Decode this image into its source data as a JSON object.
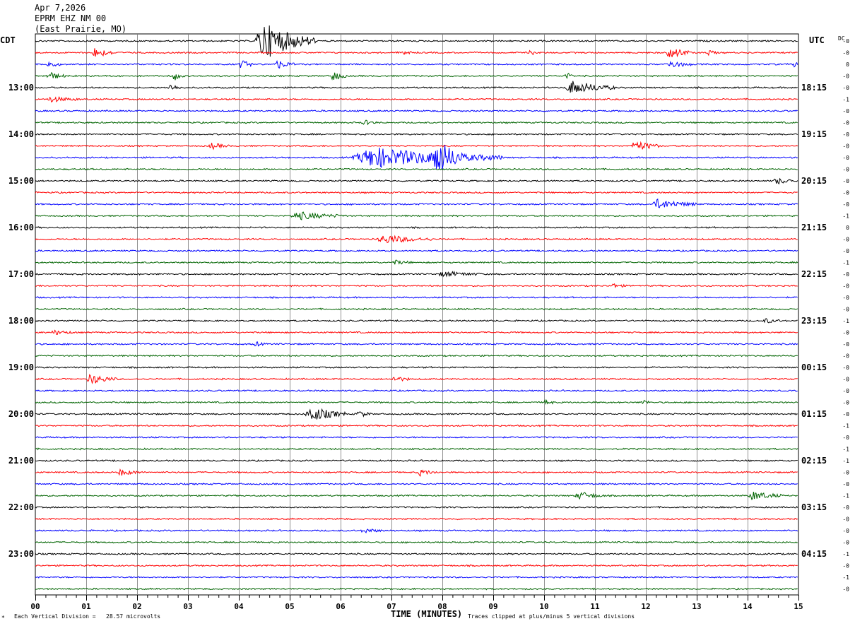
{
  "header": {
    "date": "Apr 7,2026",
    "station": "EPRM EHZ NM 00",
    "location": "(East Prairie, MO)"
  },
  "left_timezone": "CDT",
  "right_timezone": "UTC",
  "dc_label": "DC",
  "footer": {
    "scale_note": "Each Vertical Division =   28.57 microvolts",
    "clip_note": "Traces clipped at plus/minus 5 vertical divisions",
    "corner_mark": "*"
  },
  "chart_data": {
    "type": "line",
    "xlabel": "TIME (MINUTES)",
    "x_range": [
      0,
      15
    ],
    "x_ticks": [
      "00",
      "01",
      "02",
      "03",
      "04",
      "05",
      "06",
      "07",
      "08",
      "09",
      "10",
      "11",
      "12",
      "13",
      "14",
      "15"
    ],
    "left_hour_labels": [
      "13:00",
      "14:00",
      "15:00",
      "16:00",
      "17:00",
      "18:00",
      "19:00",
      "20:00",
      "21:00",
      "22:00",
      "23:00"
    ],
    "right_hour_labels": [
      "18:15",
      "19:15",
      "20:15",
      "21:15",
      "22:15",
      "23:15",
      "00:15",
      "01:15",
      "02:15",
      "03:15",
      "04:15"
    ],
    "trace_colors": [
      "#000000",
      "#ff0000",
      "#0000ff",
      "#006400"
    ],
    "dc_offsets": [
      "-0",
      "-0",
      "0",
      "-0",
      "-0",
      "-1",
      "-0",
      "-0",
      "-0",
      "-0",
      "-0",
      "-0",
      "-0",
      "-0",
      "-0",
      "-1",
      "0",
      "-0",
      "-0",
      "-1",
      "-0",
      "-0",
      "-0",
      "-0",
      "-1",
      "-0",
      "-0",
      "-0",
      "-0",
      "-0",
      "-0",
      "-0",
      "-0",
      "-1",
      "-0",
      "-1",
      "-1",
      "-0",
      "-0",
      "-1",
      "-0",
      "-0",
      "-0",
      "-0",
      "-1",
      "-0",
      "-1",
      "-0"
    ],
    "grid": true,
    "traces_per_hour": 4,
    "minutes_per_trace": 15,
    "events": [
      {
        "trace": 0,
        "start": 4.3,
        "end": 5.5,
        "amp": 4.5
      },
      {
        "trace": 1,
        "start": 1.1,
        "end": 1.6,
        "amp": 1.2
      },
      {
        "trace": 1,
        "start": 7.2,
        "end": 7.4,
        "amp": 0.8
      },
      {
        "trace": 1,
        "start": 9.7,
        "end": 9.9,
        "amp": 0.6
      },
      {
        "trace": 1,
        "start": 12.4,
        "end": 12.9,
        "amp": 1.5
      },
      {
        "trace": 1,
        "start": 13.2,
        "end": 13.4,
        "amp": 0.8
      },
      {
        "trace": 2,
        "start": 0.2,
        "end": 0.5,
        "amp": 0.8
      },
      {
        "trace": 2,
        "start": 4.0,
        "end": 4.3,
        "amp": 1.0
      },
      {
        "trace": 2,
        "start": 4.7,
        "end": 5.1,
        "amp": 1.0
      },
      {
        "trace": 2,
        "start": 12.4,
        "end": 12.9,
        "amp": 0.9
      },
      {
        "trace": 2,
        "start": 14.9,
        "end": 15.0,
        "amp": 0.8
      },
      {
        "trace": 3,
        "start": 0.2,
        "end": 0.6,
        "amp": 1.0
      },
      {
        "trace": 3,
        "start": 2.7,
        "end": 2.9,
        "amp": 1.2
      },
      {
        "trace": 3,
        "start": 5.8,
        "end": 6.1,
        "amp": 1.2
      },
      {
        "trace": 3,
        "start": 10.4,
        "end": 10.6,
        "amp": 0.8
      },
      {
        "trace": 4,
        "start": 2.6,
        "end": 2.9,
        "amp": 0.8
      },
      {
        "trace": 4,
        "start": 10.4,
        "end": 11.4,
        "amp": 1.6
      },
      {
        "trace": 5,
        "start": 0.2,
        "end": 0.9,
        "amp": 0.6
      },
      {
        "trace": 7,
        "start": 6.4,
        "end": 6.7,
        "amp": 0.6
      },
      {
        "trace": 9,
        "start": 3.4,
        "end": 3.8,
        "amp": 0.7
      },
      {
        "trace": 9,
        "start": 11.7,
        "end": 12.3,
        "amp": 1.2
      },
      {
        "trace": 10,
        "start": 6.2,
        "end": 9.2,
        "amp": 2.4
      },
      {
        "trace": 10,
        "start": 7.8,
        "end": 8.4,
        "amp": 3.6
      },
      {
        "trace": 12,
        "start": 14.5,
        "end": 15.0,
        "amp": 0.7
      },
      {
        "trace": 14,
        "start": 12.1,
        "end": 13.0,
        "amp": 1.1
      },
      {
        "trace": 15,
        "start": 5.0,
        "end": 6.1,
        "amp": 0.9
      },
      {
        "trace": 17,
        "start": 6.7,
        "end": 7.8,
        "amp": 1.0
      },
      {
        "trace": 19,
        "start": 7.0,
        "end": 7.4,
        "amp": 0.5
      },
      {
        "trace": 20,
        "start": 7.9,
        "end": 8.8,
        "amp": 0.6
      },
      {
        "trace": 21,
        "start": 11.3,
        "end": 11.6,
        "amp": 0.5
      },
      {
        "trace": 24,
        "start": 14.3,
        "end": 14.7,
        "amp": 0.5
      },
      {
        "trace": 25,
        "start": 0.3,
        "end": 0.8,
        "amp": 0.5
      },
      {
        "trace": 26,
        "start": 4.3,
        "end": 4.5,
        "amp": 0.6
      },
      {
        "trace": 29,
        "start": 1.0,
        "end": 1.6,
        "amp": 1.2
      },
      {
        "trace": 29,
        "start": 7.0,
        "end": 7.4,
        "amp": 0.6
      },
      {
        "trace": 31,
        "start": 10.0,
        "end": 10.2,
        "amp": 0.7
      },
      {
        "trace": 31,
        "start": 11.9,
        "end": 12.1,
        "amp": 0.7
      },
      {
        "trace": 32,
        "start": 5.3,
        "end": 6.1,
        "amp": 1.8
      },
      {
        "trace": 32,
        "start": 6.3,
        "end": 6.6,
        "amp": 0.8
      },
      {
        "trace": 37,
        "start": 1.6,
        "end": 2.1,
        "amp": 0.7
      },
      {
        "trace": 37,
        "start": 7.5,
        "end": 7.9,
        "amp": 0.7
      },
      {
        "trace": 39,
        "start": 10.6,
        "end": 11.2,
        "amp": 0.9
      },
      {
        "trace": 39,
        "start": 14.0,
        "end": 14.7,
        "amp": 1.0
      },
      {
        "trace": 42,
        "start": 6.4,
        "end": 6.8,
        "amp": 0.6
      }
    ]
  }
}
